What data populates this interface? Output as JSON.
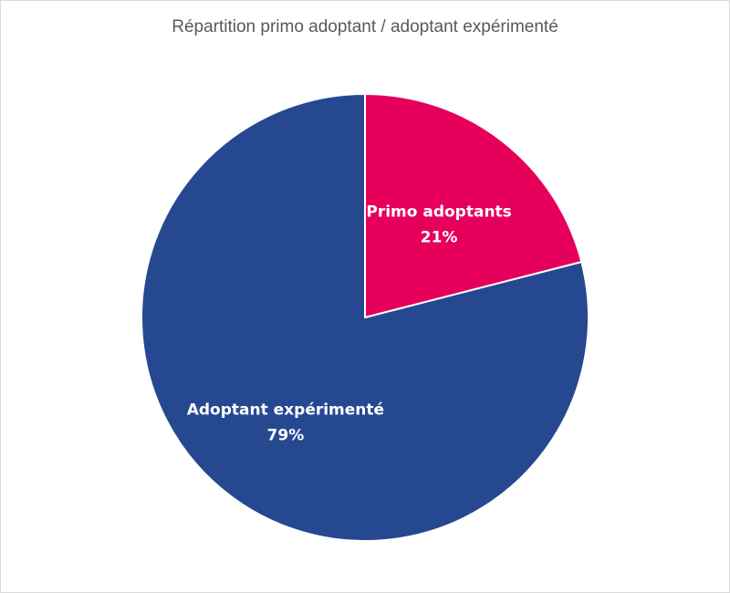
{
  "chart_data": {
    "type": "pie",
    "title": "Répartition primo adoptant / adoptant expérimenté",
    "slices": [
      {
        "label": "Primo adoptants",
        "percent_label": "21%",
        "value": 21,
        "color": "#e6005c"
      },
      {
        "label": "Adoptant expérimenté",
        "percent_label": "79%",
        "value": 79,
        "color": "#264891"
      }
    ],
    "start_angle_deg": 0,
    "direction": "clockwise",
    "legend": "none"
  }
}
